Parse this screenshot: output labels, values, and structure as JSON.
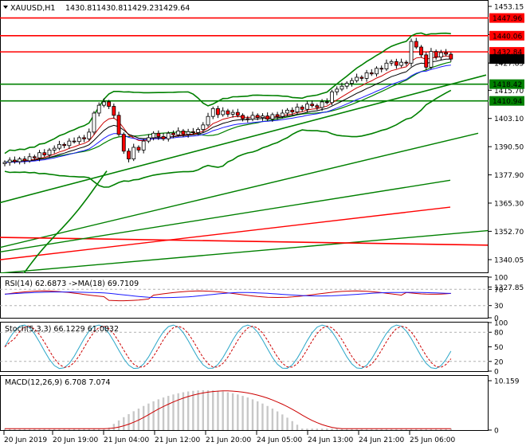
{
  "header": {
    "symbol": "XAUUSD,H1",
    "open": "1430.81",
    "high": "1430.81",
    "low": "1429.23",
    "close": "1429.64"
  },
  "chart_data": [
    {
      "type": "candlestick",
      "panel": "price",
      "ylim": [
        1334,
        1456
      ],
      "yticks": [
        "1453.15",
        "1440.50",
        "1427.85",
        "1415.70",
        "1403.10",
        "1390.50",
        "1377.90",
        "1365.30",
        "1352.70",
        "1340.05",
        "1327.85"
      ],
      "ytick_values": [
        1453.15,
        1440.5,
        1427.85,
        1415.7,
        1403.1,
        1390.5,
        1377.9,
        1365.3,
        1352.7,
        1340.05,
        1327.85
      ],
      "price_labels": [
        {
          "text": "1447.96",
          "value": 1447.96,
          "color": "#ff0000"
        },
        {
          "text": "1440.06",
          "value": 1440.06,
          "color": "#ff0000"
        },
        {
          "text": "1432.84",
          "value": 1432.84,
          "color": "#ff0000"
        },
        {
          "text": "1429.64",
          "value": 1429.64,
          "color": "#000000"
        },
        {
          "text": "1418.42",
          "value": 1418.42,
          "color": "#008000"
        },
        {
          "text": "1410.94",
          "value": 1410.94,
          "color": "#008000"
        }
      ],
      "hlines": [
        {
          "value": 1447.96,
          "color": "#ff0000"
        },
        {
          "value": 1440.06,
          "color": "#ff0000"
        },
        {
          "value": 1432.84,
          "color": "#ff0000"
        },
        {
          "value": 1418.42,
          "color": "#008000"
        },
        {
          "value": 1410.94,
          "color": "#008000"
        }
      ],
      "xticks": [
        "20 Jun 2019",
        "20 Jun 19:00",
        "21 Jun 04:00",
        "21 Jun 12:00",
        "21 Jun 20:00",
        "24 Jun 05:00",
        "24 Jun 13:00",
        "24 Jun 21:00",
        "25 Jun 06:00"
      ],
      "close": [
        1383.5,
        1384.5,
        1383.8,
        1385.0,
        1384.2,
        1386.0,
        1385.5,
        1387.8,
        1386.8,
        1389.0,
        1389.8,
        1391.5,
        1391.0,
        1393.0,
        1392.8,
        1394.5,
        1394.0,
        1397.0,
        1405.5,
        1409.0,
        1410.5,
        1408.5,
        1404.5,
        1396.0,
        1388.5,
        1385.0,
        1390.2,
        1389.0,
        1393.0,
        1394.5,
        1396.5,
        1395.0,
        1394.0,
        1396.5,
        1395.8,
        1397.5,
        1396.0,
        1397.2,
        1396.8,
        1398.2,
        1400.2,
        1404.0,
        1407.5,
        1404.8,
        1406.5,
        1405.0,
        1405.8,
        1404.5,
        1403.0,
        1402.8,
        1404.5,
        1403.5,
        1404.2,
        1402.8,
        1404.8,
        1404.0,
        1405.5,
        1406.8,
        1406.0,
        1408.2,
        1407.2,
        1409.5,
        1408.8,
        1408.0,
        1410.5,
        1410.2,
        1415.0,
        1416.2,
        1417.5,
        1418.8,
        1420.0,
        1421.5,
        1421.0,
        1423.5,
        1423.0,
        1425.5,
        1425.2,
        1427.8,
        1428.5,
        1426.8,
        1428.2,
        1427.8,
        1437.5,
        1435.0,
        1431.5,
        1426.0,
        1433.0,
        1430.5,
        1432.5,
        1431.8,
        1429.64
      ],
      "overlays": [
        "Bollinger Bands (green): upper, middle, lower",
        "Moving averages (red, black, blue)",
        "Trend/Andrews pitchfork lines (green, red)"
      ]
    },
    {
      "type": "line",
      "panel": "rsi",
      "label": "RSI(14) 62.6873 ->MA(18) 69.7109",
      "ylim": [
        0,
        100
      ],
      "yticks": [
        "100",
        "70",
        "30",
        "0"
      ],
      "series": [
        {
          "name": "RSI(14)",
          "color": "#cc0000"
        },
        {
          "name": "MA(18)",
          "color": "#1a1aff"
        }
      ]
    },
    {
      "type": "line",
      "panel": "stoch",
      "label": "Stoch(5,3,3) 66.1229 61.0832",
      "ylim": [
        0,
        100
      ],
      "yticks": [
        "100",
        "80",
        "50",
        "20",
        "0"
      ],
      "series": [
        {
          "name": "%K",
          "color": "#2aa6c8"
        },
        {
          "name": "%D",
          "color": "#cc0000"
        }
      ]
    },
    {
      "type": "bar",
      "panel": "macd",
      "label": "MACD(12,26,9) 6.708 7.074",
      "ylim": [
        0,
        10.159
      ],
      "yticks": [
        "10.159",
        "0"
      ],
      "series": [
        {
          "name": "MACD",
          "color": "#c8c8c8"
        },
        {
          "name": "Signal",
          "color": "#cc0000"
        }
      ]
    }
  ]
}
